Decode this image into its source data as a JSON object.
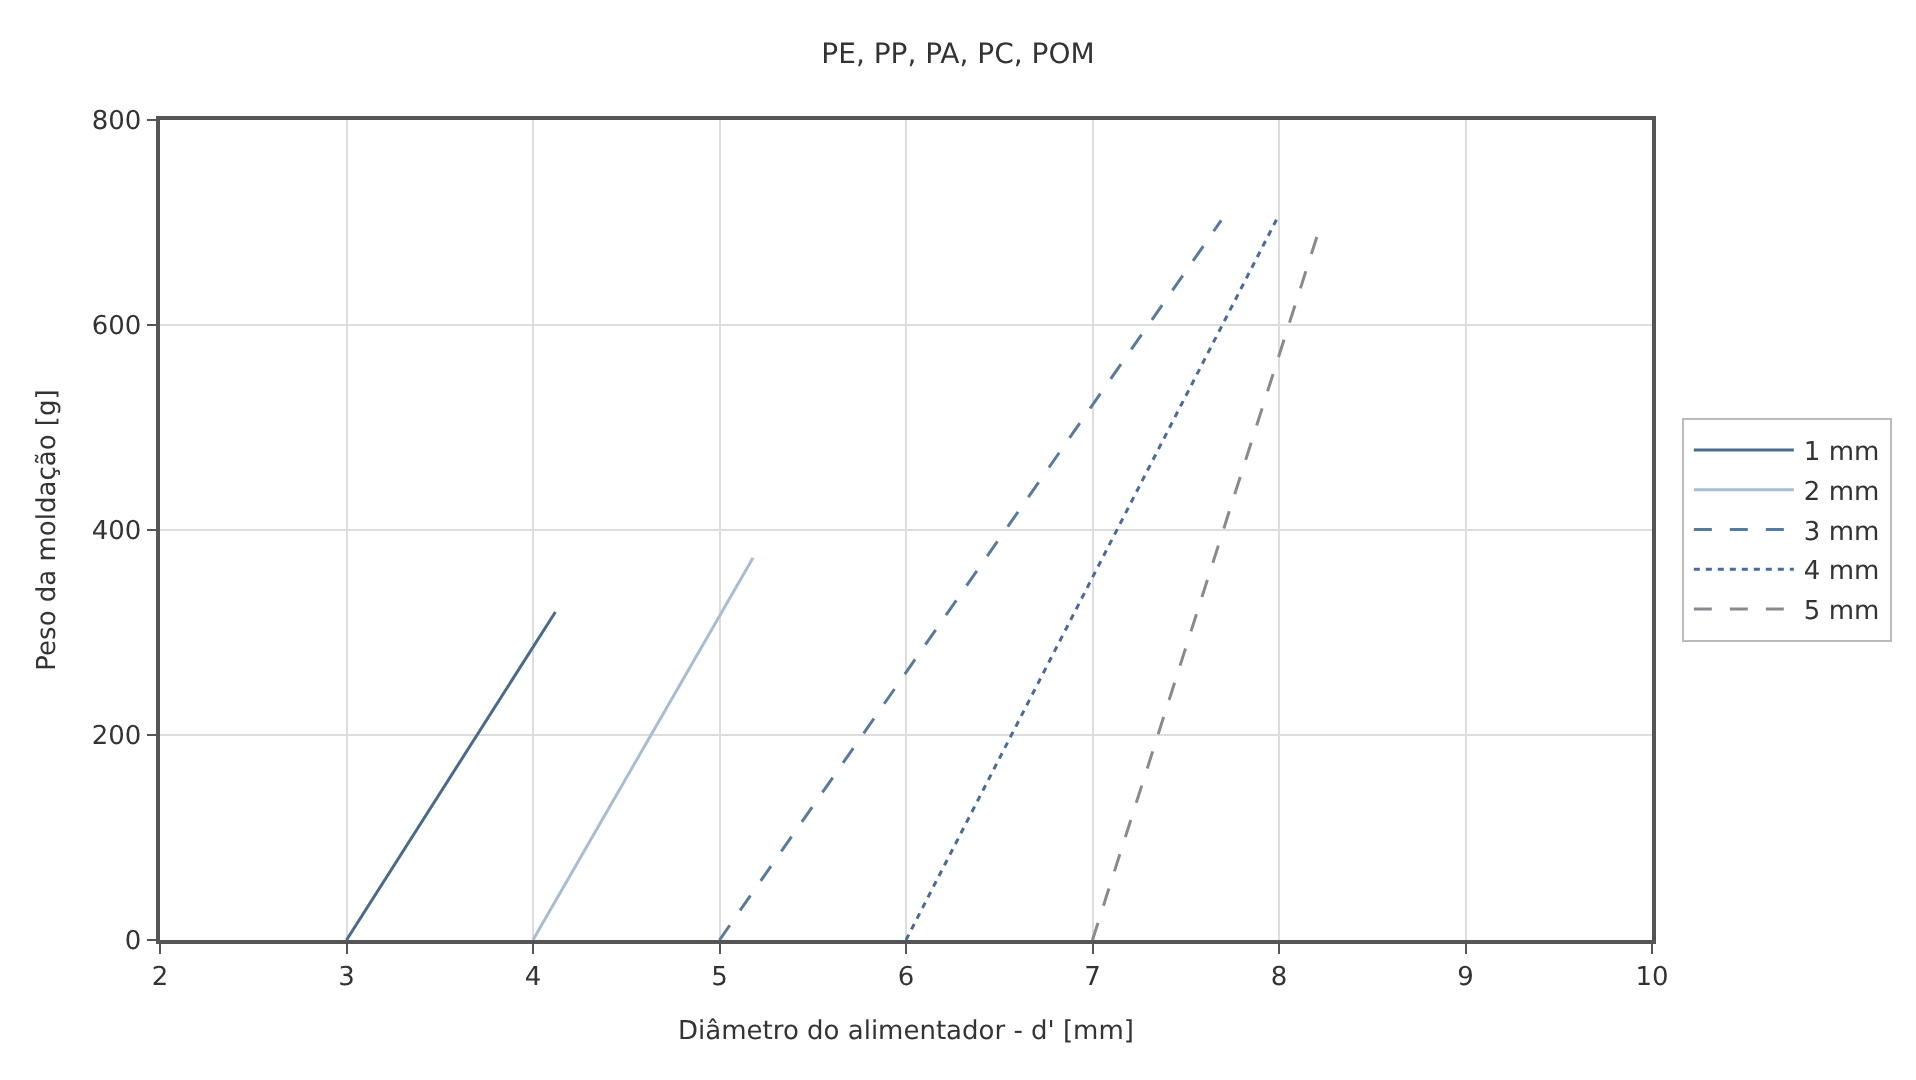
{
  "chart_data": {
    "type": "line",
    "title": "PE, PP, PA, PC, POM",
    "xlabel": "Diâmetro do alimentador - d' [mm]",
    "ylabel": "Peso da moldação [g]",
    "xlim": [
      2,
      10
    ],
    "xticks": [
      2,
      3,
      4,
      5,
      6,
      7,
      8,
      9,
      10
    ],
    "ylim": [
      0,
      800
    ],
    "yticks": [
      0,
      200,
      400,
      600,
      800
    ],
    "grid": true,
    "legend": "right",
    "marker": "none",
    "series": [
      {
        "name": "1 mm",
        "color": "#4a6a8c",
        "line_style": "solid",
        "x": [
          3,
          4.12
        ],
        "values": [
          0,
          320
        ]
      },
      {
        "name": "2 mm",
        "color": "#a9bdd2",
        "line_style": "solid",
        "x": [
          4,
          5.18
        ],
        "values": [
          0,
          373
        ]
      },
      {
        "name": "3 mm",
        "color": "#5a7a9c",
        "line_style": "dashed",
        "x": [
          5,
          7.69
        ],
        "values": [
          0,
          702
        ]
      },
      {
        "name": "4 mm",
        "color": "#4a6a98",
        "line_style": "dotted",
        "x": [
          6,
          7.99
        ],
        "values": [
          0,
          704
        ]
      },
      {
        "name": "5 mm",
        "color": "#8a8a8e",
        "line_style": "dashed",
        "x": [
          7,
          8.21
        ],
        "values": [
          0,
          690
        ]
      }
    ]
  }
}
